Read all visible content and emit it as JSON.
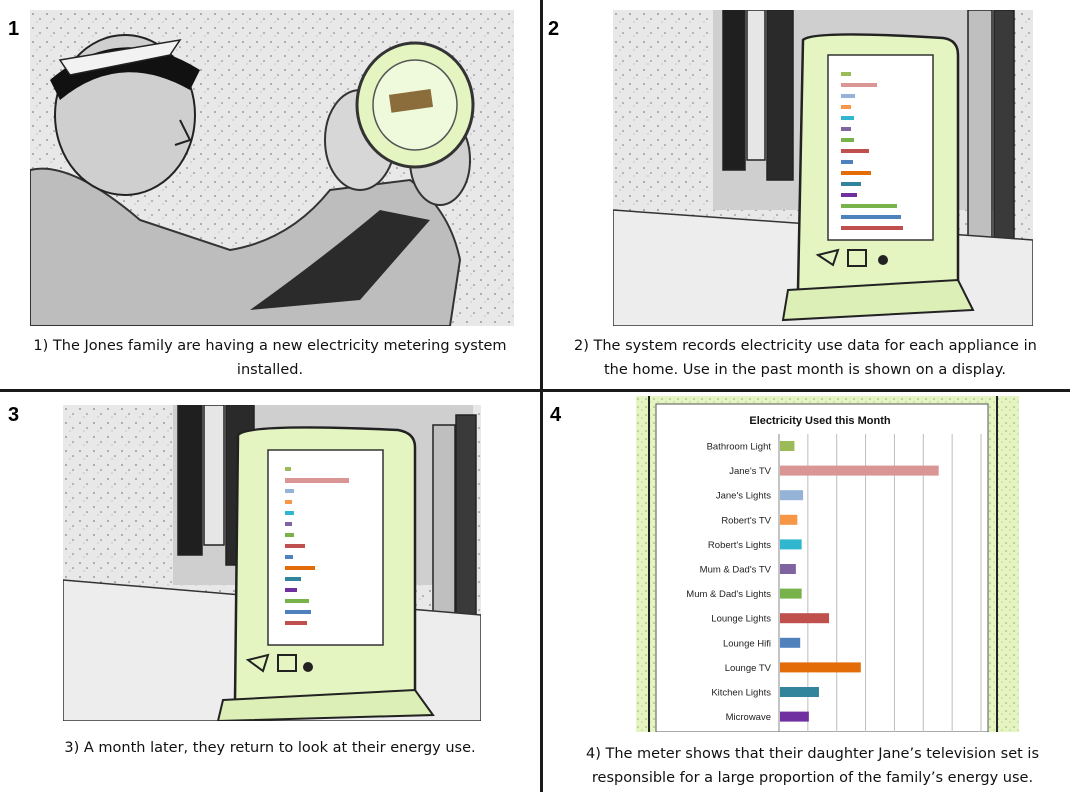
{
  "panels": [
    {
      "number": "1",
      "caption_lines": [
        "1) The Jones family are having a new electricity metering system",
        "installed."
      ]
    },
    {
      "number": "2",
      "caption_lines": [
        "2) The system records electricity use data for each appliance in",
        "the home. Use in the past month is shown on a display."
      ]
    },
    {
      "number": "3",
      "caption_lines": [
        "3) A month later, they return to look at their energy use."
      ]
    },
    {
      "number": "4",
      "caption_lines": [
        "4)  The meter shows that their daughter Jane’s television set is",
        "responsible for a large proportion of the family’s energy use."
      ]
    }
  ],
  "chart_data": {
    "type": "bar",
    "orientation": "horizontal",
    "title": "Electricity Used this Month",
    "categories": [
      "Bathroom Light",
      "Jane's TV",
      "Jane's Lights",
      "Robert's TV",
      "Robert's Lights",
      "Mum & Dad's TV",
      "Mum & Dad's Lights",
      "Lounge Lights",
      "Lounge Hifi",
      "Lounge TV",
      "Kitchen Lights",
      "Microwave"
    ],
    "values": [
      0.5,
      5.5,
      0.8,
      0.6,
      0.75,
      0.55,
      0.75,
      1.7,
      0.7,
      2.8,
      1.35,
      1.0
    ],
    "colors": [
      "#9bbb59",
      "#d99694",
      "#95b3d7",
      "#f79646",
      "#31b6d0",
      "#8064a2",
      "#77b34a",
      "#c0504d",
      "#4f81bd",
      "#e36c09",
      "#31849b",
      "#7030a0"
    ],
    "xlim": [
      0,
      7
    ],
    "grid": true
  },
  "colors": {
    "meter_green": "#e4f5c2",
    "divider": "#1a1a1a"
  }
}
